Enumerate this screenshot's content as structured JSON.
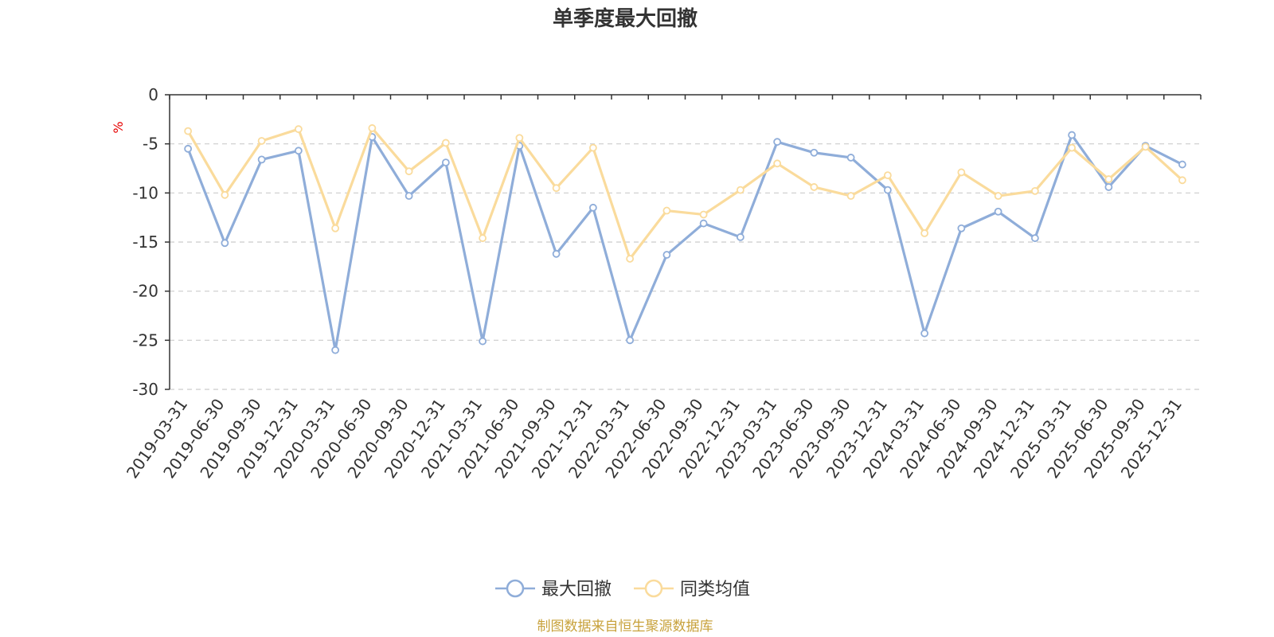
{
  "chart_data": {
    "type": "line",
    "title": "单季度最大回撤",
    "ylabel": "%",
    "ylim": [
      -30,
      0
    ],
    "yticks": [
      0,
      -5,
      -10,
      -15,
      -20,
      -25,
      -30
    ],
    "grid": true,
    "legend_position": "bottom",
    "categories": [
      "2019-03-31",
      "2019-06-30",
      "2019-09-30",
      "2019-12-31",
      "2020-03-31",
      "2020-06-30",
      "2020-09-30",
      "2020-12-31",
      "2021-03-31",
      "2021-06-30",
      "2021-09-30",
      "2021-12-31",
      "2022-03-31",
      "2022-06-30",
      "2022-09-30",
      "2022-12-31",
      "2023-03-31",
      "2023-06-30",
      "2023-09-30",
      "2023-12-31",
      "2024-03-31",
      "2024-06-30",
      "2024-09-30",
      "2024-12-31",
      "2025-03-31",
      "2025-06-30",
      "2025-09-30",
      "2025-12-31"
    ],
    "series": [
      {
        "name": "最大回撤",
        "color": "#8fadd9",
        "values": [
          -5.5,
          -15.1,
          -6.6,
          -5.7,
          -26.0,
          -4.3,
          -10.3,
          -6.9,
          -25.1,
          -5.2,
          -16.2,
          -11.5,
          -25.0,
          -16.3,
          -13.1,
          -14.5,
          -4.8,
          -5.9,
          -6.4,
          -9.7,
          -24.3,
          -13.6,
          -11.9,
          -14.6,
          -4.1,
          -9.4,
          -5.2,
          -7.1
        ]
      },
      {
        "name": "同类均值",
        "color": "#fadb9c",
        "values": [
          -3.7,
          -10.2,
          -4.7,
          -3.5,
          -13.6,
          -3.4,
          -7.8,
          -4.9,
          -14.6,
          -4.4,
          -9.5,
          -5.4,
          -16.7,
          -11.8,
          -12.2,
          -9.7,
          -7.0,
          -9.4,
          -10.3,
          -8.2,
          -14.1,
          -7.9,
          -10.3,
          -9.8,
          -5.4,
          -8.6,
          -5.3,
          -8.7
        ]
      }
    ]
  },
  "footer": {
    "source": "制图数据来自恒生聚源数据库",
    "source_color": "#c8a23c"
  },
  "colors": {
    "axis": "#333333",
    "grid": "#cccccc",
    "ylabel": "#e60000"
  }
}
